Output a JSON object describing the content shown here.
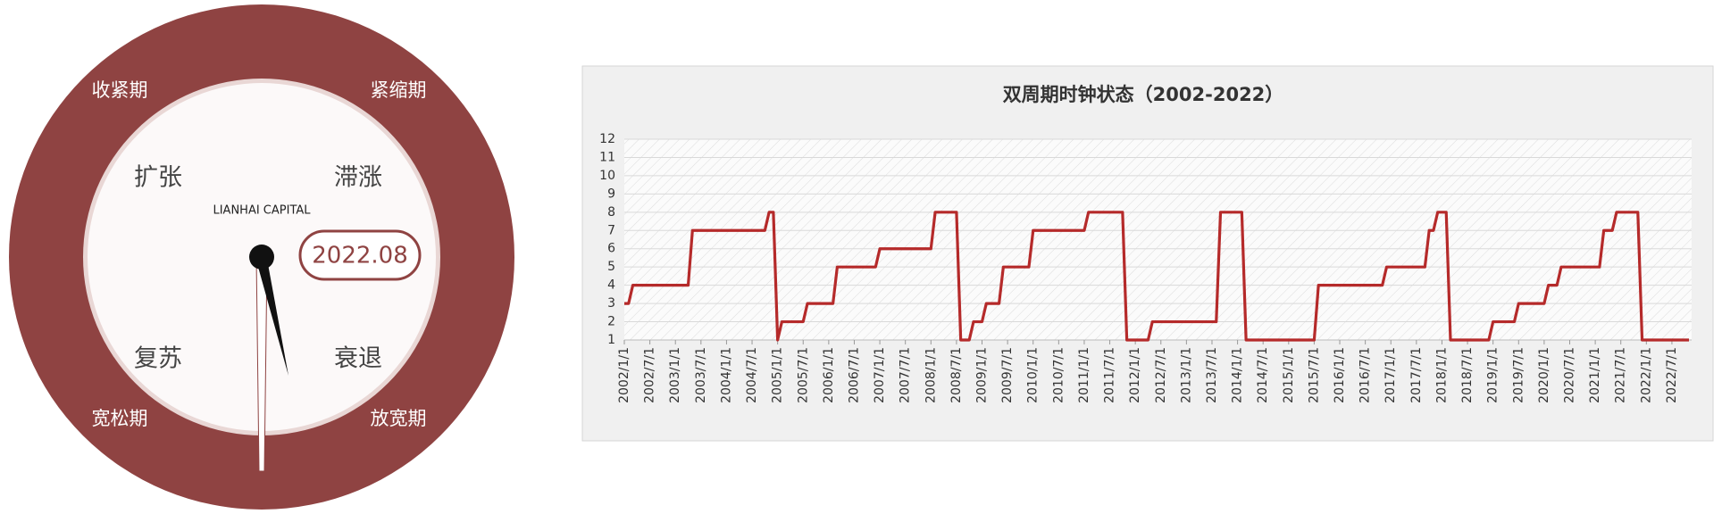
{
  "clock": {
    "outer_labels": [
      "收紧期",
      "紧缩期",
      "宽松期",
      "放宽期"
    ],
    "inner_labels": [
      "扩张",
      "滞涨",
      "复苏",
      "衰退"
    ],
    "brand": "LIANHAI CAPITAL",
    "date": "2022.08"
  },
  "chart_data": {
    "type": "line",
    "title": "双周期时钟状态（2002-2022）",
    "categories": [
      "2002/1/1",
      null,
      null,
      null,
      null,
      null,
      "2002/7/1",
      null,
      null,
      null,
      null,
      null,
      "2003/1/1",
      null,
      null,
      null,
      null,
      null,
      "2003/7/1",
      null,
      null,
      null,
      null,
      null,
      "2004/1/1",
      null,
      null,
      null,
      null,
      null,
      "2004/7/1",
      null,
      null,
      null,
      null,
      null,
      "2005/1/1",
      null,
      null,
      null,
      null,
      null,
      "2005/7/1",
      null,
      null,
      null,
      null,
      null,
      "2006/1/1",
      null,
      null,
      null,
      null,
      null,
      "2006/7/1",
      null,
      null,
      null,
      null,
      null,
      "2007/1/1",
      null,
      null,
      null,
      null,
      null,
      "2007/7/1",
      null,
      null,
      null,
      null,
      null,
      "2008/1/1",
      null,
      null,
      null,
      null,
      null,
      "2008/7/1",
      null,
      null,
      null,
      null,
      null,
      "2009/1/1",
      null,
      null,
      null,
      null,
      null,
      "2009/7/1",
      null,
      null,
      null,
      null,
      null,
      "2010/1/1",
      null,
      null,
      null,
      null,
      null,
      "2010/7/1",
      null,
      null,
      null,
      null,
      null,
      "2011/1/1",
      null,
      null,
      null,
      null,
      null,
      "2011/7/1",
      null,
      null,
      null,
      null,
      null,
      "2012/1/1",
      null,
      null,
      null,
      null,
      null,
      "2012/7/1",
      null,
      null,
      null,
      null,
      null,
      "2013/1/1",
      null,
      null,
      null,
      null,
      null,
      "2013/7/1",
      null,
      null,
      null,
      null,
      null,
      "2014/1/1",
      null,
      null,
      null,
      null,
      null,
      "2014/7/1",
      null,
      null,
      null,
      null,
      null,
      "2015/1/1",
      null,
      null,
      null,
      null,
      null,
      "2015/7/1",
      null,
      null,
      null,
      null,
      null,
      "2016/1/1",
      null,
      null,
      null,
      null,
      null,
      "2016/7/1",
      null,
      null,
      null,
      null,
      null,
      "2017/1/1",
      null,
      null,
      null,
      null,
      null,
      "2017/7/1",
      null,
      null,
      null,
      null,
      null,
      "2018/1/1",
      null,
      null,
      null,
      null,
      null,
      "2018/7/1",
      null,
      null,
      null,
      null,
      null,
      "2019/1/1",
      null,
      null,
      null,
      null,
      null,
      "2019/7/1",
      null,
      null,
      null,
      null,
      null,
      "2020/1/1",
      null,
      null,
      null,
      null,
      null,
      "2020/7/1",
      null,
      null,
      null,
      null,
      null,
      "2021/1/1",
      null,
      null,
      null,
      null,
      null,
      "2021/7/1",
      null,
      null,
      null,
      null,
      null,
      "2022/1/1",
      null,
      null,
      null,
      null,
      null,
      "2022/7/1",
      null,
      null,
      null,
      null
    ],
    "values": [
      3,
      3,
      4,
      4,
      4,
      4,
      4,
      4,
      4,
      4,
      4,
      4,
      4,
      4,
      4,
      4,
      7,
      7,
      7,
      7,
      7,
      7,
      7,
      7,
      7,
      7,
      7,
      7,
      7,
      7,
      7,
      7,
      7,
      7,
      8,
      8,
      1,
      2,
      2,
      2,
      2,
      2,
      2,
      3,
      3,
      3,
      3,
      3,
      3,
      3,
      5,
      5,
      5,
      5,
      5,
      5,
      5,
      5,
      5,
      5,
      6,
      6,
      6,
      6,
      6,
      6,
      6,
      6,
      6,
      6,
      6,
      6,
      6,
      8,
      8,
      8,
      8,
      8,
      8,
      1,
      1,
      1,
      2,
      2,
      2,
      3,
      3,
      3,
      3,
      5,
      5,
      5,
      5,
      5,
      5,
      5,
      7,
      7,
      7,
      7,
      7,
      7,
      7,
      7,
      7,
      7,
      7,
      7,
      7,
      8,
      8,
      8,
      8,
      8,
      8,
      8,
      8,
      8,
      1,
      1,
      1,
      1,
      1,
      1,
      2,
      2,
      2,
      2,
      2,
      2,
      2,
      2,
      2,
      2,
      2,
      2,
      2,
      2,
      2,
      2,
      8,
      8,
      8,
      8,
      8,
      8,
      1,
      1,
      1,
      1,
      1,
      1,
      1,
      1,
      1,
      1,
      1,
      1,
      1,
      1,
      1,
      1,
      1,
      4,
      4,
      4,
      4,
      4,
      4,
      4,
      4,
      4,
      4,
      4,
      4,
      4,
      4,
      4,
      4,
      5,
      5,
      5,
      5,
      5,
      5,
      5,
      5,
      5,
      5,
      7,
      7,
      8,
      8,
      8,
      1,
      1,
      1,
      1,
      1,
      1,
      1,
      1,
      1,
      1,
      2,
      2,
      2,
      2,
      2,
      2,
      3,
      3,
      3,
      3,
      3,
      3,
      3,
      4,
      4,
      4,
      5,
      5,
      5,
      5,
      5,
      5,
      5,
      5,
      5,
      5,
      7,
      7,
      7,
      8,
      8,
      8,
      8,
      8,
      8,
      1,
      1,
      1,
      1,
      1,
      1,
      1,
      1,
      1,
      1,
      1,
      1
    ],
    "color": "#b52a2a",
    "ylim": [
      1,
      12
    ],
    "yticks": [
      1,
      2,
      3,
      4,
      5,
      6,
      7,
      8,
      9,
      10,
      11,
      12
    ],
    "grid": true
  }
}
